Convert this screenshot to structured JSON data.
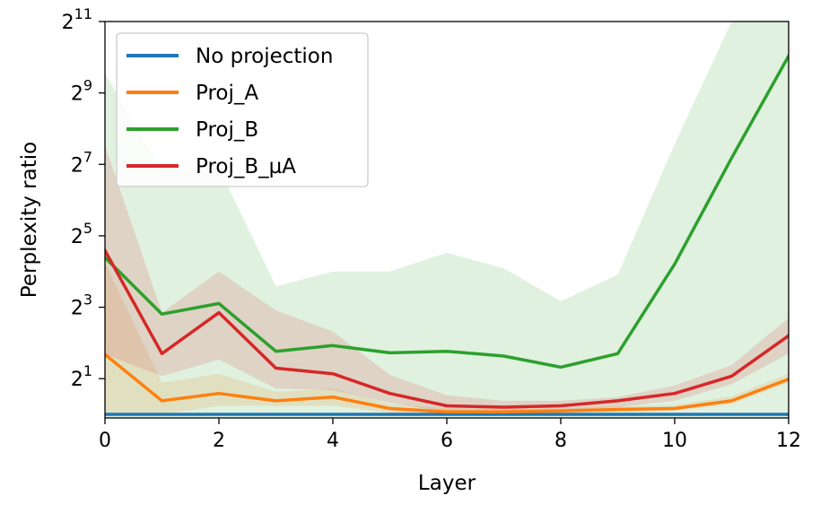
{
  "chart_data": {
    "type": "line",
    "title": "",
    "xlabel": "Layer",
    "ylabel": "Perplexity ratio",
    "x": [
      0,
      1,
      2,
      3,
      4,
      5,
      6,
      7,
      8,
      9,
      10,
      11,
      12
    ],
    "xlim": [
      0,
      12
    ],
    "ylim_log2": [
      -0.1,
      11
    ],
    "yscale": "log2",
    "x_ticks": [
      "0",
      "2",
      "4",
      "6",
      "8",
      "10",
      "12"
    ],
    "y_ticks": [
      {
        "base": "2",
        "exp": "1",
        "log2": 1
      },
      {
        "base": "2",
        "exp": "3",
        "log2": 3
      },
      {
        "base": "2",
        "exp": "5",
        "log2": 5
      },
      {
        "base": "2",
        "exp": "7",
        "log2": 7
      },
      {
        "base": "2",
        "exp": "9",
        "log2": 9
      },
      {
        "base": "2",
        "exp": "11",
        "log2": 11
      }
    ],
    "grid": false,
    "legend_position": "top-left",
    "series": [
      {
        "name": "No projection",
        "color": "#1f77b4",
        "values": [
          1,
          1,
          1,
          1,
          1,
          1,
          1,
          1,
          1,
          1,
          1,
          1,
          1
        ],
        "band_lower": null,
        "band_upper": null
      },
      {
        "name": "Proj_A",
        "color": "#ff7f0e",
        "values": [
          3.2,
          1.3,
          1.5,
          1.3,
          1.4,
          1.12,
          1.05,
          1.05,
          1.07,
          1.1,
          1.12,
          1.3,
          1.98
        ],
        "band_lower": [
          1.0,
          1.0,
          1.18,
          1.18,
          1.18,
          1.03,
          1.0,
          1.0,
          1.0,
          1.05,
          1.07,
          1.22,
          1.85
        ],
        "band_upper": [
          19,
          1.85,
          2.2,
          1.55,
          1.65,
          1.22,
          1.12,
          1.12,
          1.12,
          1.17,
          1.2,
          1.42,
          2.2
        ]
      },
      {
        "name": "Proj_B",
        "color": "#2ca02c",
        "values": [
          21,
          7,
          8.6,
          3.4,
          3.8,
          3.3,
          3.4,
          3.1,
          2.5,
          3.25,
          18.5,
          145,
          1050
        ],
        "band_lower": null,
        "band_upper": [
          750,
          114,
          120,
          12,
          16,
          16,
          23,
          17,
          9,
          15,
          190,
          2048,
          2048
        ]
      },
      {
        "name": "Proj_B_µA",
        "color": "#d62728",
        "values": [
          24,
          3.25,
          7.2,
          2.45,
          2.2,
          1.5,
          1.18,
          1.15,
          1.18,
          1.3,
          1.5,
          2.1,
          4.6
        ],
        "band_lower": [
          3.2,
          2.1,
          2.9,
          1.65,
          1.6,
          1.25,
          1.05,
          1.05,
          1.08,
          1.15,
          1.3,
          1.8,
          3.25
        ],
        "band_upper": [
          185,
          7.2,
          16,
          7.5,
          5.0,
          2.15,
          1.45,
          1.3,
          1.3,
          1.4,
          1.75,
          2.6,
          6.5
        ]
      }
    ]
  }
}
